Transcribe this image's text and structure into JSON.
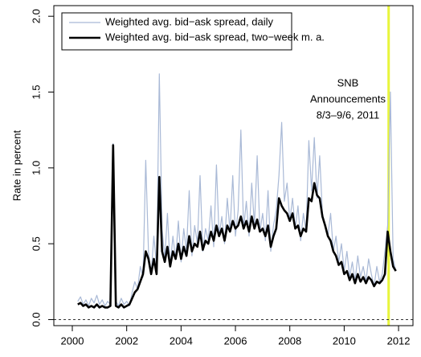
{
  "chart_data": {
    "type": "line",
    "ylabel": "Rate in percent",
    "x": [
      2000.2,
      2000.3,
      2000.4,
      2000.5,
      2000.6,
      2000.7,
      2000.8,
      2000.9,
      2001.0,
      2001.1,
      2001.2,
      2001.3,
      2001.4,
      2001.5,
      2001.6,
      2001.7,
      2001.8,
      2001.9,
      2002.0,
      2002.1,
      2002.2,
      2002.3,
      2002.4,
      2002.5,
      2002.6,
      2002.7,
      2002.8,
      2002.9,
      2003.0,
      2003.1,
      2003.2,
      2003.3,
      2003.4,
      2003.5,
      2003.6,
      2003.7,
      2003.8,
      2003.9,
      2004.0,
      2004.1,
      2004.2,
      2004.3,
      2004.4,
      2004.5,
      2004.6,
      2004.7,
      2004.8,
      2004.9,
      2005.0,
      2005.1,
      2005.2,
      2005.3,
      2005.4,
      2005.5,
      2005.6,
      2005.7,
      2005.8,
      2005.9,
      2006.0,
      2006.1,
      2006.2,
      2006.3,
      2006.4,
      2006.5,
      2006.6,
      2006.7,
      2006.8,
      2006.9,
      2007.0,
      2007.1,
      2007.2,
      2007.3,
      2007.4,
      2007.5,
      2007.6,
      2007.7,
      2007.8,
      2007.9,
      2008.0,
      2008.1,
      2008.2,
      2008.3,
      2008.4,
      2008.5,
      2008.6,
      2008.7,
      2008.8,
      2008.9,
      2009.0,
      2009.1,
      2009.2,
      2009.3,
      2009.4,
      2009.5,
      2009.6,
      2009.7,
      2009.8,
      2009.9,
      2010.0,
      2010.1,
      2010.2,
      2010.3,
      2010.4,
      2010.5,
      2010.6,
      2010.7,
      2010.8,
      2010.9,
      2011.0,
      2011.1,
      2011.2,
      2011.3,
      2011.4,
      2011.5,
      2011.6,
      2011.7,
      2011.8,
      2011.9
    ],
    "series": [
      {
        "name": "Weighted avg. bid−ask spread, daily",
        "color": "#a9b9d6",
        "width": 1.2,
        "values": [
          0.12,
          0.15,
          0.1,
          0.13,
          0.09,
          0.14,
          0.11,
          0.16,
          0.1,
          0.13,
          0.09,
          0.12,
          0.1,
          1.16,
          0.12,
          0.09,
          0.14,
          0.1,
          0.12,
          0.09,
          0.18,
          0.25,
          0.2,
          0.35,
          0.28,
          1.05,
          0.45,
          0.3,
          0.55,
          0.35,
          1.62,
          0.6,
          0.4,
          0.7,
          0.35,
          0.55,
          0.4,
          0.65,
          0.38,
          0.6,
          0.45,
          0.85,
          0.42,
          0.62,
          0.5,
          0.95,
          0.45,
          0.6,
          0.52,
          0.75,
          0.48,
          1.02,
          0.55,
          0.68,
          0.5,
          0.8,
          0.58,
          0.95,
          0.55,
          0.72,
          1.25,
          0.6,
          0.78,
          0.55,
          0.9,
          0.62,
          1.08,
          0.58,
          0.7,
          0.52,
          0.85,
          0.45,
          0.62,
          0.72,
          0.95,
          1.3,
          0.78,
          0.9,
          0.65,
          0.8,
          0.6,
          0.75,
          0.52,
          0.7,
          0.58,
          1.18,
          0.85,
          1.2,
          0.8,
          1.08,
          0.7,
          0.62,
          0.55,
          0.7,
          0.45,
          0.55,
          0.38,
          0.5,
          0.32,
          0.45,
          0.28,
          0.38,
          0.25,
          0.42,
          0.28,
          0.35,
          0.25,
          0.4,
          0.3,
          0.22,
          0.35,
          0.25,
          0.3,
          0.45,
          0.62,
          1.5,
          0.4,
          0.32
        ]
      },
      {
        "name": "Weighted avg. bid−ask spread, two−week m. a.",
        "color": "#000000",
        "width": 2.6,
        "values": [
          0.1,
          0.11,
          0.09,
          0.1,
          0.08,
          0.09,
          0.08,
          0.1,
          0.08,
          0.09,
          0.08,
          0.08,
          0.09,
          1.15,
          0.09,
          0.08,
          0.1,
          0.08,
          0.09,
          0.1,
          0.14,
          0.18,
          0.2,
          0.25,
          0.3,
          0.45,
          0.4,
          0.3,
          0.4,
          0.3,
          0.94,
          0.45,
          0.38,
          0.48,
          0.35,
          0.45,
          0.4,
          0.5,
          0.4,
          0.48,
          0.42,
          0.55,
          0.45,
          0.5,
          0.48,
          0.58,
          0.46,
          0.52,
          0.5,
          0.58,
          0.52,
          0.62,
          0.55,
          0.6,
          0.52,
          0.62,
          0.58,
          0.65,
          0.6,
          0.62,
          0.68,
          0.6,
          0.65,
          0.58,
          0.68,
          0.6,
          0.66,
          0.58,
          0.6,
          0.55,
          0.62,
          0.48,
          0.55,
          0.6,
          0.8,
          0.75,
          0.72,
          0.7,
          0.65,
          0.7,
          0.6,
          0.62,
          0.55,
          0.6,
          0.58,
          0.8,
          0.78,
          0.9,
          0.82,
          0.8,
          0.68,
          0.62,
          0.55,
          0.52,
          0.45,
          0.42,
          0.36,
          0.38,
          0.3,
          0.32,
          0.26,
          0.3,
          0.24,
          0.3,
          0.25,
          0.28,
          0.24,
          0.28,
          0.26,
          0.22,
          0.25,
          0.24,
          0.26,
          0.3,
          0.58,
          0.45,
          0.35,
          0.32
        ]
      }
    ],
    "xlim": [
      1999.32,
      2012.53
    ],
    "ylim": [
      -0.04,
      2.07
    ],
    "xticks": [
      2000,
      2002,
      2004,
      2006,
      2008,
      2010,
      2012
    ],
    "yticks": [
      {
        "value": 0,
        "label": "0.0"
      },
      {
        "value": 0.5,
        "label": "0.5"
      },
      {
        "value": 1,
        "label": "1.0"
      },
      {
        "value": 1.5,
        "label": "1.5"
      },
      {
        "value": 2,
        "label": "2.0"
      }
    ],
    "reference_line": 0,
    "highlight": {
      "from": 2011.59,
      "to": 2011.68,
      "color": "#e8f53c"
    },
    "annotation": {
      "lines": [
        "SNB",
        "Announcements",
        "8/3–9/6, 2011"
      ]
    },
    "legend": "top-left"
  }
}
